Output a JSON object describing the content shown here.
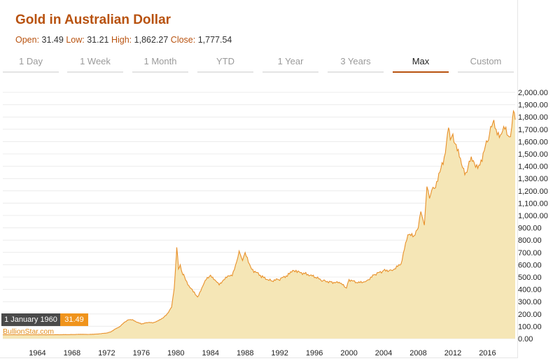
{
  "title": "Gold in Australian Dollar",
  "ohlc": {
    "open_label": "Open:",
    "open": "31.49",
    "low_label": "Low:",
    "low": "31.21",
    "high_label": "High:",
    "high": "1,862.27",
    "close_label": "Close:",
    "close": "1,777.54"
  },
  "tabs": [
    {
      "label": "1 Day"
    },
    {
      "label": "1 Week"
    },
    {
      "label": "1 Month"
    },
    {
      "label": "YTD"
    },
    {
      "label": "1 Year"
    },
    {
      "label": "3 Years"
    },
    {
      "label": "Max",
      "active": true
    },
    {
      "label": "Custom"
    }
  ],
  "tooltip": {
    "date": "1 January 1960",
    "value": "31.49"
  },
  "brand": "BullionStar.com",
  "colors": {
    "accent": "#b8520f",
    "line": "#e8902a",
    "area": "#f5e6b6",
    "tooltip_value_bg": "#f0941c"
  },
  "chart_data": {
    "type": "area",
    "title": "Gold in Australian Dollar",
    "xlabel": "",
    "ylabel": "",
    "xlim": [
      1960,
      2019.2
    ],
    "ylim": [
      0,
      2000
    ],
    "grid": true,
    "x_ticks": [
      "1964",
      "1968",
      "1972",
      "1976",
      "1980",
      "1984",
      "1988",
      "1992",
      "1996",
      "2000",
      "2004",
      "2008",
      "2012",
      "2016"
    ],
    "y_ticks": [
      "0.00",
      "100.00",
      "200.00",
      "300.00",
      "400.00",
      "500.00",
      "600.00",
      "700.00",
      "800.00",
      "900.00",
      "1,000.00",
      "1,100.00",
      "1,200.00",
      "1,300.00",
      "1,400.00",
      "1,500.00",
      "1,600.00",
      "1,700.00",
      "1,800.00",
      "1,900.00",
      "2,000.00"
    ],
    "series": [
      {
        "x": [
          1960,
          1962,
          1964,
          1966,
          1968,
          1969,
          1970,
          1971,
          1972,
          1972.5,
          1973,
          1973.5,
          1974,
          1974.5,
          1975,
          1976,
          1976.7,
          1977.5,
          1978,
          1978.5,
          1979,
          1979.5,
          1979.8,
          1980.0,
          1980.1,
          1980.3,
          1980.5,
          1980.8,
          1981,
          1981.5,
          1982,
          1982.5,
          1983,
          1983.5,
          1984,
          1984.5,
          1985,
          1985.5,
          1986,
          1986.5,
          1987,
          1987.3,
          1987.7,
          1988,
          1988.5,
          1989,
          1990,
          1991,
          1992,
          1993,
          1993.5,
          1994,
          1995,
          1996,
          1997,
          1998,
          1999,
          1999.7,
          2000,
          2001,
          2002,
          2003,
          2004,
          2005,
          2006,
          2006.4,
          2006.8,
          2007.5,
          2008,
          2008.3,
          2008.7,
          2009,
          2009.3,
          2009.7,
          2010,
          2010.5,
          2011,
          2011.5,
          2011.7,
          2012,
          2012.5,
          2013,
          2013.5,
          2014,
          2015,
          2016,
          2016.6,
          2017,
          2017.5,
          2018,
          2018.5,
          2018.8,
          2019,
          2019.2
        ],
        "y": [
          31.49,
          31.5,
          31.5,
          31.6,
          33,
          35,
          34,
          38,
          45,
          55,
          80,
          95,
          130,
          155,
          150,
          120,
          130,
          130,
          150,
          165,
          200,
          260,
          400,
          620,
          750,
          560,
          600,
          520,
          500,
          430,
          380,
          340,
          410,
          480,
          520,
          470,
          440,
          480,
          500,
          520,
          620,
          700,
          650,
          690,
          600,
          550,
          500,
          470,
          480,
          520,
          560,
          540,
          530,
          500,
          470,
          460,
          450,
          410,
          480,
          450,
          470,
          520,
          550,
          560,
          600,
          720,
          860,
          820,
          900,
          1050,
          900,
          1250,
          1150,
          1200,
          1250,
          1350,
          1450,
          1750,
          1600,
          1650,
          1550,
          1400,
          1350,
          1450,
          1400,
          1600,
          1750,
          1700,
          1650,
          1700,
          1650,
          1700,
          1860,
          1777.54
        ]
      }
    ]
  }
}
